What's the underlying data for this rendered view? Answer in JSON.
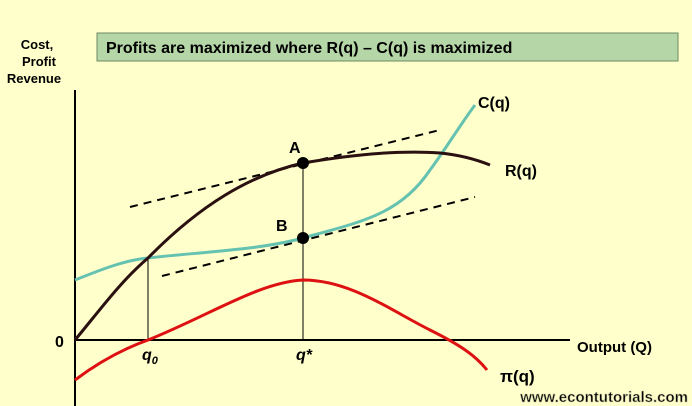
{
  "title": "Profits are maximized where R(q) – C(q) is maximized",
  "y_axis_label": [
    "Cost,",
    "Profit",
    "Revenue"
  ],
  "origin_label": "0",
  "x_axis_label": "Output (Q)",
  "x_marks": [
    {
      "label": "q",
      "subscript": "0"
    },
    {
      "label": "q*"
    }
  ],
  "points": [
    "A",
    "B"
  ],
  "curves": [
    "C(q)",
    "R(q)",
    "π(q)"
  ],
  "watermark": "www.econtutorials.com"
}
